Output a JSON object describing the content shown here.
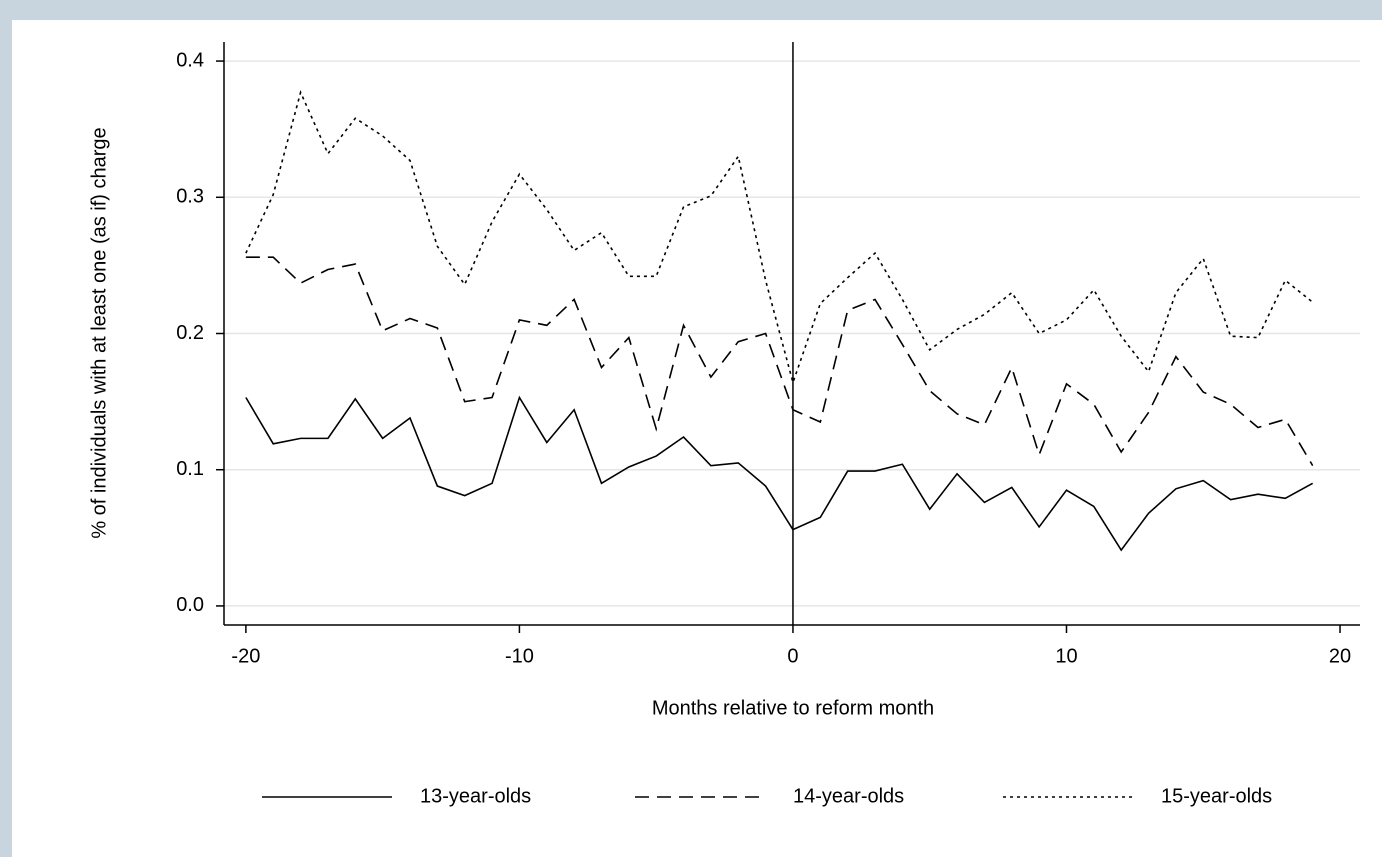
{
  "chart_data": {
    "type": "line",
    "x_label": "Months relative to reform month",
    "y_label": "% of individuals with at least one (as if) charge",
    "x": [
      -20,
      -19,
      -18,
      -17,
      -16,
      -15,
      -14,
      -13,
      -12,
      -11,
      -10,
      -9,
      -8,
      -7,
      -6,
      -5,
      -4,
      -3,
      -2,
      -1,
      0,
      1,
      2,
      3,
      4,
      5,
      6,
      7,
      8,
      9,
      10,
      11,
      12,
      13,
      14,
      15,
      16,
      17,
      18,
      19
    ],
    "series": [
      {
        "name": "13-year-olds",
        "color": "#000000",
        "style": "solid",
        "values": [
          0.153,
          0.119,
          0.123,
          0.123,
          0.152,
          0.123,
          0.138,
          0.088,
          0.081,
          0.09,
          0.153,
          0.12,
          0.144,
          0.09,
          0.102,
          0.11,
          0.124,
          0.103,
          0.105,
          0.088,
          0.056,
          0.065,
          0.099,
          0.099,
          0.104,
          0.071,
          0.097,
          0.076,
          0.087,
          0.058,
          0.085,
          0.073,
          0.041,
          0.068,
          0.086,
          0.092,
          0.078,
          0.082,
          0.079,
          0.09
        ]
      },
      {
        "name": "14-year-olds",
        "color": "#000000",
        "style": "dashed",
        "values": [
          0.256,
          0.256,
          0.237,
          0.247,
          0.251,
          0.202,
          0.211,
          0.204,
          0.15,
          0.153,
          0.21,
          0.206,
          0.225,
          0.175,
          0.197,
          0.13,
          0.206,
          0.168,
          0.194,
          0.2,
          0.144,
          0.135,
          0.217,
          0.225,
          0.192,
          0.158,
          0.141,
          0.133,
          0.175,
          0.111,
          0.163,
          0.148,
          0.113,
          0.142,
          0.183,
          0.157,
          0.148,
          0.131,
          0.137,
          0.103
        ]
      },
      {
        "name": "15-year-olds",
        "color": "#000000",
        "style": "dotted",
        "values": [
          0.259,
          0.302,
          0.377,
          0.332,
          0.358,
          0.345,
          0.327,
          0.264,
          0.236,
          0.282,
          0.317,
          0.291,
          0.261,
          0.274,
          0.242,
          0.242,
          0.293,
          0.301,
          0.33,
          0.239,
          0.164,
          0.222,
          0.241,
          0.259,
          0.225,
          0.188,
          0.203,
          0.214,
          0.23,
          0.2,
          0.21,
          0.232,
          0.198,
          0.172,
          0.23,
          0.255,
          0.198,
          0.197,
          0.239,
          0.223
        ]
      }
    ],
    "xlim": [
      -20.8,
      20.73
    ],
    "ylim": [
      -0.014,
      0.414
    ],
    "xticks": [
      -20,
      -10,
      0,
      10,
      20
    ],
    "yticks": [
      {
        "value": 0,
        "label": "0.0"
      },
      0.1,
      0.2,
      0.3,
      0.4
    ],
    "grid": true,
    "xline": 0,
    "legend": "bottom"
  }
}
